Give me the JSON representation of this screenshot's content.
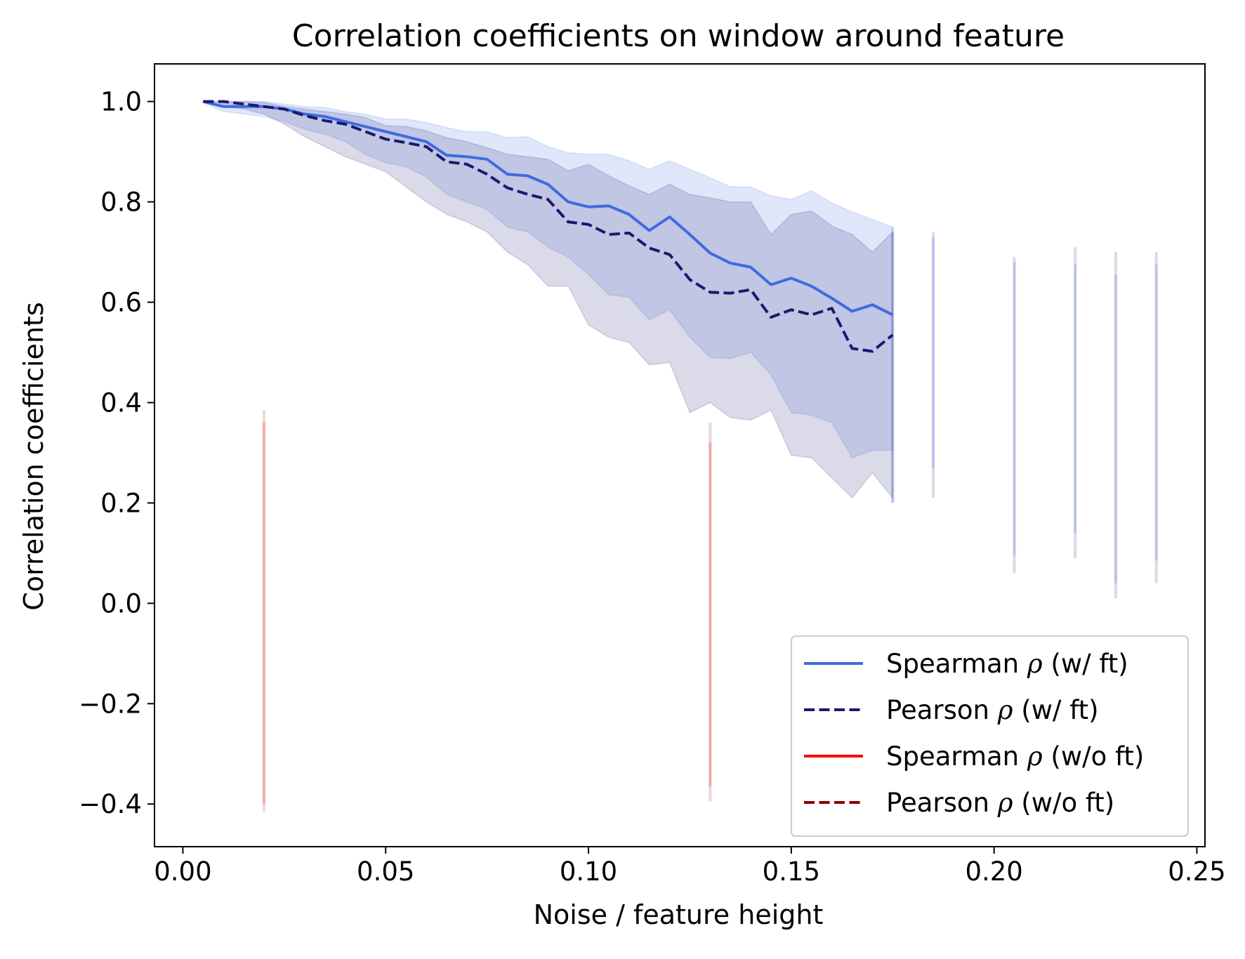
{
  "chart_data": {
    "type": "line",
    "title": "Correlation coefficients on window around feature",
    "xlabel": "Noise / feature height",
    "ylabel": "Correlation coefficients",
    "xlim": [
      -0.007,
      0.252
    ],
    "ylim": [
      -0.485,
      1.075
    ],
    "xticks": [
      0.0,
      0.05,
      0.1,
      0.15,
      0.2,
      0.25
    ],
    "xtick_labels": [
      "0.00",
      "0.05",
      "0.10",
      "0.15",
      "0.20",
      "0.25"
    ],
    "yticks": [
      -0.4,
      -0.2,
      0.0,
      0.2,
      0.4,
      0.6,
      0.8,
      1.0
    ],
    "ytick_labels": [
      "−0.4",
      "−0.2",
      "0.0",
      "0.2",
      "0.4",
      "0.6",
      "0.8",
      "1.0"
    ],
    "grid": false,
    "legend_position": "bottom-right",
    "colors": {
      "spearman_wft": "#4169e1",
      "pearson_wft": "#191970",
      "spearman_woft": "#ff0000",
      "pearson_woft": "#8b0000"
    },
    "legend": [
      {
        "label_before": "Spearman ",
        "symbol": "ρ",
        "label_after": " (w/ ft)",
        "color": "#4169e1",
        "dashed": false
      },
      {
        "label_before": "Pearson ",
        "symbol": "ρ",
        "label_after": " (w/ ft)",
        "color": "#191970",
        "dashed": true
      },
      {
        "label_before": "Spearman ",
        "symbol": "ρ",
        "label_after": " (w/o ft)",
        "color": "#ff0000",
        "dashed": false
      },
      {
        "label_before": "Pearson ",
        "symbol": "ρ",
        "label_after": " (w/o ft)",
        "color": "#8b0000",
        "dashed": true
      }
    ],
    "x": [
      0.005,
      0.01,
      0.015,
      0.02,
      0.025,
      0.03,
      0.035,
      0.04,
      0.045,
      0.05,
      0.055,
      0.06,
      0.065,
      0.07,
      0.075,
      0.08,
      0.085,
      0.09,
      0.095,
      0.1,
      0.105,
      0.11,
      0.115,
      0.12,
      0.125,
      0.13,
      0.135,
      0.14,
      0.145,
      0.15,
      0.155,
      0.16,
      0.165,
      0.17,
      0.175
    ],
    "series": [
      {
        "name": "Spearman ρ (w/ ft)",
        "color": "#4169e1",
        "dashed": false,
        "values": [
          1.0,
          0.99,
          0.99,
          0.99,
          0.985,
          0.975,
          0.97,
          0.96,
          0.95,
          0.94,
          0.93,
          0.92,
          0.893,
          0.89,
          0.885,
          0.855,
          0.852,
          0.835,
          0.8,
          0.79,
          0.792,
          0.775,
          0.743,
          0.77,
          0.735,
          0.698,
          0.678,
          0.67,
          0.635,
          0.648,
          0.632,
          0.608,
          0.582,
          0.595,
          0.575
        ],
        "band_lower": [
          0.998,
          0.98,
          0.975,
          0.97,
          0.96,
          0.945,
          0.935,
          0.92,
          0.895,
          0.878,
          0.87,
          0.85,
          0.815,
          0.8,
          0.785,
          0.75,
          0.74,
          0.71,
          0.69,
          0.655,
          0.615,
          0.61,
          0.565,
          0.585,
          0.53,
          0.49,
          0.488,
          0.5,
          0.455,
          0.38,
          0.375,
          0.36,
          0.29,
          0.305,
          0.305
        ],
        "band_upper": [
          1.0,
          1.0,
          1.0,
          1.0,
          0.995,
          0.99,
          0.988,
          0.98,
          0.975,
          0.965,
          0.965,
          0.958,
          0.948,
          0.94,
          0.94,
          0.928,
          0.93,
          0.91,
          0.898,
          0.895,
          0.895,
          0.882,
          0.865,
          0.882,
          0.865,
          0.848,
          0.83,
          0.83,
          0.812,
          0.805,
          0.822,
          0.798,
          0.78,
          0.765,
          0.75
        ]
      },
      {
        "name": "Pearson ρ (w/ ft)",
        "color": "#191970",
        "dashed": true,
        "values": [
          1.0,
          1.0,
          0.995,
          0.99,
          0.985,
          0.972,
          0.962,
          0.955,
          0.94,
          0.925,
          0.918,
          0.91,
          0.88,
          0.875,
          0.855,
          0.828,
          0.815,
          0.805,
          0.76,
          0.755,
          0.735,
          0.738,
          0.708,
          0.695,
          0.645,
          0.62,
          0.618,
          0.625,
          0.57,
          0.585,
          0.575,
          0.588,
          0.508,
          0.502,
          0.535
        ],
        "band_lower": [
          1.0,
          0.99,
          0.985,
          0.975,
          0.955,
          0.93,
          0.91,
          0.89,
          0.875,
          0.86,
          0.83,
          0.8,
          0.775,
          0.76,
          0.74,
          0.7,
          0.675,
          0.632,
          0.632,
          0.555,
          0.53,
          0.52,
          0.475,
          0.48,
          0.38,
          0.4,
          0.37,
          0.365,
          0.385,
          0.295,
          0.29,
          0.25,
          0.21,
          0.26,
          0.21
        ],
        "band_upper": [
          1.0,
          1.0,
          1.0,
          0.998,
          0.99,
          0.985,
          0.98,
          0.975,
          0.968,
          0.952,
          0.95,
          0.942,
          0.928,
          0.92,
          0.908,
          0.895,
          0.89,
          0.885,
          0.862,
          0.875,
          0.852,
          0.832,
          0.815,
          0.835,
          0.815,
          0.808,
          0.8,
          0.8,
          0.735,
          0.775,
          0.782,
          0.752,
          0.735,
          0.7,
          0.74
        ]
      }
    ],
    "vertical_bars": [
      {
        "group": "w/ ft",
        "x": 0.175,
        "spearman_range": [
          0.2,
          0.75
        ],
        "pearson_range": [
          0.2,
          0.74
        ]
      },
      {
        "group": "w/ ft",
        "x": 0.185,
        "spearman_range": [
          0.27,
          0.74
        ],
        "pearson_range": [
          0.21,
          0.73
        ]
      },
      {
        "group": "w/ ft",
        "x": 0.205,
        "spearman_range": [
          0.095,
          0.68
        ],
        "pearson_range": [
          0.06,
          0.69
        ]
      },
      {
        "group": "w/ ft",
        "x": 0.22,
        "spearman_range": [
          0.14,
          0.675
        ],
        "pearson_range": [
          0.09,
          0.71
        ]
      },
      {
        "group": "w/ ft",
        "x": 0.23,
        "spearman_range": [
          0.04,
          0.655
        ],
        "pearson_range": [
          0.01,
          0.7
        ]
      },
      {
        "group": "w/ ft",
        "x": 0.24,
        "spearman_range": [
          0.085,
          0.675
        ],
        "pearson_range": [
          0.04,
          0.7
        ]
      },
      {
        "group": "w/o ft",
        "x": 0.02,
        "spearman_range": [
          -0.4,
          0.36
        ],
        "pearson_range": [
          -0.415,
          0.385
        ]
      },
      {
        "group": "w/o ft",
        "x": 0.13,
        "spearman_range": [
          -0.365,
          0.32
        ],
        "pearson_range": [
          -0.395,
          0.36
        ]
      }
    ]
  }
}
